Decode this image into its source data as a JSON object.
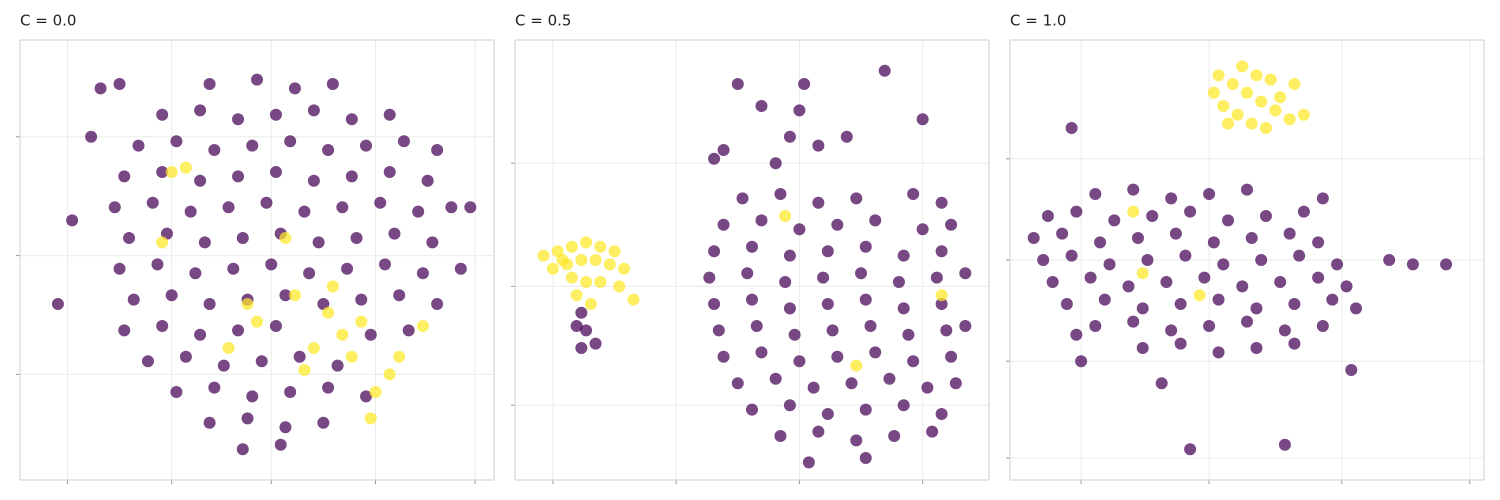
{
  "chart_data": [
    {
      "type": "scatter",
      "title": "C = 0.0",
      "xlim": [
        0,
        100
      ],
      "ylim": [
        0,
        100
      ],
      "xticks": [
        10,
        32,
        53,
        75,
        96
      ],
      "yticks": [
        24,
        51,
        78
      ],
      "grid": true,
      "series": [
        {
          "color": "#440154",
          "x": [
            40,
            50,
            58,
            66,
            30,
            38,
            46,
            54,
            62,
            70,
            78,
            25,
            33,
            41,
            49,
            57,
            65,
            73,
            81,
            88,
            22,
            30,
            38,
            46,
            54,
            62,
            70,
            78,
            86,
            20,
            28,
            36,
            44,
            52,
            60,
            68,
            76,
            84,
            91,
            23,
            31,
            39,
            47,
            55,
            63,
            71,
            79,
            87,
            21,
            29,
            37,
            45,
            53,
            61,
            69,
            77,
            85,
            93,
            24,
            32,
            40,
            48,
            56,
            64,
            72,
            80,
            88,
            22,
            30,
            38,
            46,
            54,
            74,
            82,
            27,
            35,
            43,
            51,
            59,
            67,
            33,
            41,
            49,
            57,
            65,
            73,
            40,
            48,
            56,
            64,
            47,
            55,
            17,
            15,
            11,
            8,
            95,
            21
          ],
          "values": [
            90,
            91,
            89,
            90,
            83,
            84,
            82,
            83,
            84,
            82,
            83,
            76,
            77,
            75,
            76,
            77,
            75,
            76,
            77,
            75,
            69,
            70,
            68,
            69,
            70,
            68,
            69,
            70,
            68,
            62,
            63,
            61,
            62,
            63,
            61,
            62,
            63,
            61,
            62,
            55,
            56,
            54,
            55,
            56,
            54,
            55,
            56,
            54,
            48,
            49,
            47,
            48,
            49,
            47,
            48,
            49,
            47,
            48,
            41,
            42,
            40,
            41,
            42,
            40,
            41,
            42,
            40,
            34,
            35,
            33,
            34,
            35,
            33,
            34,
            27,
            28,
            26,
            27,
            28,
            26,
            20,
            21,
            19,
            20,
            21,
            19,
            13,
            14,
            12,
            13,
            7,
            8,
            89,
            78,
            59,
            40,
            62,
            90
          ]
        },
        {
          "color": "#fde725",
          "x": [
            65,
            68,
            62,
            72,
            78,
            80,
            75,
            70,
            48,
            50,
            32,
            35,
            58,
            85,
            44,
            60,
            66,
            30,
            56,
            74
          ],
          "values": [
            38,
            33,
            30,
            36,
            24,
            28,
            20,
            28,
            40,
            36,
            70,
            71,
            42,
            35,
            30,
            25,
            44,
            54,
            55,
            14
          ]
        }
      ]
    },
    {
      "type": "scatter",
      "title": "C = 0.5",
      "xlim": [
        0,
        100
      ],
      "ylim": [
        0,
        100
      ],
      "xticks": [
        8,
        34,
        60,
        86
      ],
      "yticks": [
        17,
        44,
        72
      ],
      "grid": true,
      "series": [
        {
          "color": "#440154",
          "x": [
            48,
            56,
            64,
            72,
            84,
            90,
            44,
            52,
            60,
            68,
            76,
            86,
            92,
            42,
            50,
            58,
            66,
            74,
            82,
            90,
            41,
            49,
            57,
            65,
            73,
            81,
            89,
            95,
            42,
            50,
            58,
            66,
            74,
            82,
            90,
            43,
            51,
            59,
            67,
            75,
            83,
            91,
            95,
            44,
            52,
            60,
            68,
            76,
            84,
            92,
            47,
            55,
            63,
            71,
            79,
            87,
            93,
            50,
            58,
            66,
            74,
            82,
            90,
            56,
            64,
            72,
            80,
            88,
            62,
            74,
            52,
            60,
            58,
            64,
            55,
            42,
            44,
            78,
            86,
            70,
            61,
            47,
            14,
            15,
            14,
            17,
            13
          ],
          "values": [
            64,
            65,
            63,
            64,
            65,
            63,
            58,
            59,
            57,
            58,
            59,
            57,
            58,
            52,
            53,
            51,
            52,
            53,
            51,
            52,
            46,
            47,
            45,
            46,
            47,
            45,
            46,
            47,
            40,
            41,
            39,
            40,
            41,
            39,
            40,
            34,
            35,
            33,
            34,
            35,
            33,
            34,
            35,
            28,
            29,
            27,
            28,
            29,
            27,
            28,
            22,
            23,
            21,
            22,
            23,
            21,
            22,
            16,
            17,
            15,
            16,
            17,
            15,
            10,
            11,
            9,
            10,
            11,
            4,
            5,
            85,
            84,
            78,
            76,
            72,
            73,
            75,
            93,
            82,
            78,
            90,
            90,
            38,
            34,
            30,
            31,
            35
          ]
        },
        {
          "color": "#fde725",
          "x": [
            6,
            9,
            12,
            15,
            18,
            21,
            8,
            11,
            14,
            17,
            20,
            23,
            12,
            15,
            18,
            22,
            25,
            13,
            16,
            10,
            57,
            72,
            90
          ],
          "values": [
            51,
            52,
            53,
            54,
            53,
            52,
            48,
            49,
            50,
            50,
            49,
            48,
            46,
            45,
            45,
            44,
            41,
            42,
            40,
            50,
            60,
            26,
            42
          ]
        }
      ]
    },
    {
      "type": "scatter",
      "title": "C = 1.0",
      "xlim": [
        0,
        100
      ],
      "ylim": [
        0,
        100
      ],
      "xticks": [
        15,
        42,
        70,
        97
      ],
      "yticks": [
        5,
        27,
        50,
        73
      ],
      "grid": true,
      "series": [
        {
          "color": "#440154",
          "x": [
            18,
            26,
            34,
            42,
            50,
            8,
            14,
            22,
            30,
            38,
            46,
            54,
            62,
            5,
            11,
            19,
            27,
            35,
            43,
            51,
            59,
            65,
            7,
            13,
            21,
            29,
            37,
            45,
            53,
            61,
            69,
            9,
            17,
            25,
            33,
            41,
            49,
            57,
            65,
            71,
            12,
            20,
            28,
            36,
            44,
            52,
            60,
            68,
            73,
            18,
            26,
            34,
            42,
            50,
            58,
            66,
            28,
            36,
            44,
            52,
            60,
            13,
            92,
            38,
            58,
            32,
            15,
            72,
            66,
            14,
            80,
            85
          ],
          "values": [
            65,
            66,
            64,
            65,
            66,
            60,
            61,
            59,
            60,
            61,
            59,
            60,
            61,
            55,
            56,
            54,
            55,
            56,
            54,
            55,
            56,
            54,
            50,
            51,
            49,
            50,
            51,
            49,
            50,
            51,
            49,
            45,
            46,
            44,
            45,
            46,
            44,
            45,
            46,
            44,
            40,
            41,
            39,
            40,
            41,
            39,
            40,
            41,
            39,
            35,
            36,
            34,
            35,
            36,
            34,
            35,
            30,
            31,
            29,
            30,
            31,
            80,
            49,
            7,
            8,
            22,
            27,
            25,
            64,
            33,
            50,
            49
          ]
        },
        {
          "color": "#fde725",
          "x": [
            44,
            47,
            50,
            53,
            56,
            59,
            45,
            48,
            51,
            54,
            57,
            60,
            43,
            46,
            62,
            49,
            52,
            55,
            26,
            28,
            40
          ],
          "values": [
            92,
            90,
            88,
            86,
            84,
            82,
            85,
            83,
            81,
            80,
            87,
            90,
            88,
            81,
            83,
            94,
            92,
            91,
            61,
            47,
            42
          ]
        }
      ]
    }
  ]
}
